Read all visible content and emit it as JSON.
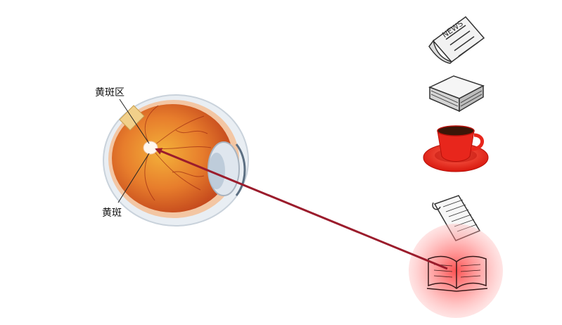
{
  "labels": {
    "macular_region": "黄斑区",
    "macula": "黄斑"
  },
  "icons": [
    "newspaper-icon",
    "paper-stack-icon",
    "coffee-cup-icon",
    "notepad-icon",
    "open-book-icon"
  ],
  "colors": {
    "arrow": "#9b1c2c",
    "highlight": "#ff4a4a",
    "cup": "#e8261c"
  }
}
